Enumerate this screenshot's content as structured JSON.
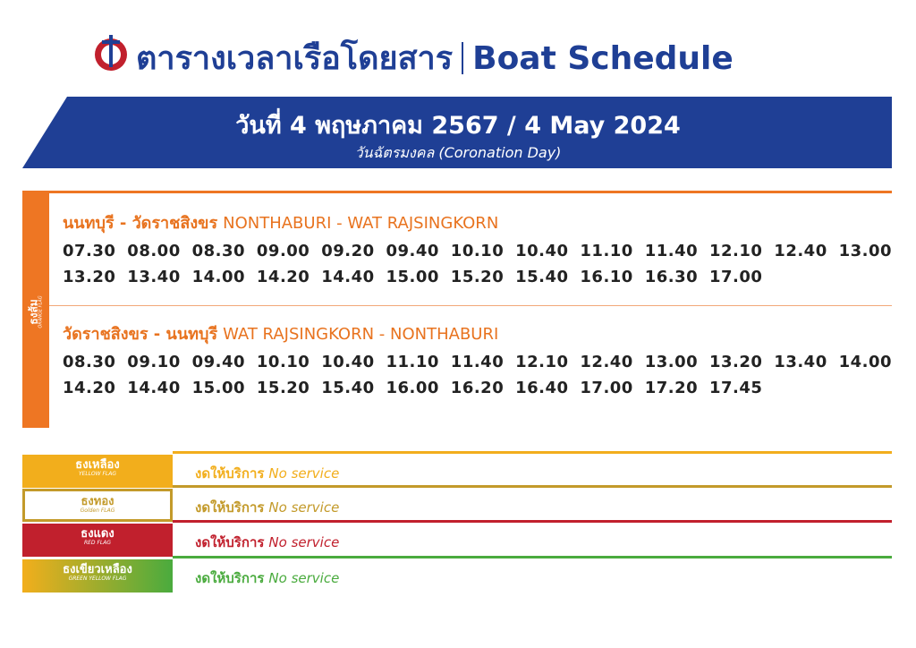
{
  "header": {
    "title_th": "ตารางเวลาเรือโดยสาร",
    "title_en": "Boat Schedule"
  },
  "banner": {
    "date": "วันที่ 4 พฤษภาคม 2567 / 4 May 2024",
    "subtitle": "วันฉัตรมงคล (Coronation Day)"
  },
  "orange": {
    "flag_th": "ธงส้ม",
    "flag_en": "ORANGE FLAG",
    "routes": [
      {
        "title_th": "นนทบุรี - วัดราชสิงขร",
        "title_en": "NONTHABURI - WAT RAJSINGKORN",
        "times": [
          "07.30",
          "08.00",
          "08.30",
          "09.00",
          "09.20",
          "09.40",
          "10.10",
          "10.40",
          "11.10",
          "11.40",
          "12.10",
          "12.40",
          "13.00",
          "13.20",
          "13.40",
          "14.00",
          "14.20",
          "14.40",
          "15.00",
          "15.20",
          "15.40",
          "16.10",
          "16.30",
          "17.00"
        ]
      },
      {
        "title_th": "วัดราชสิงขร - นนทบุรี",
        "title_en": "WAT RAJSINGKORN - NONTHABURI",
        "times": [
          "08.30",
          "09.10",
          "09.40",
          "10.10",
          "10.40",
          "11.10",
          "11.40",
          "12.10",
          "12.40",
          "13.00",
          "13.20",
          "13.40",
          "14.00",
          "14.20",
          "14.40",
          "15.00",
          "15.20",
          "15.40",
          "16.00",
          "16.20",
          "16.40",
          "17.00",
          "17.20",
          "17.45"
        ]
      }
    ]
  },
  "flags": [
    {
      "name_th": "ธงเหลือง",
      "name_en": "YELLOW FLAG",
      "status_th": "งดให้บริการ",
      "status_en": "No service",
      "color": "#f2ae1c"
    },
    {
      "name_th": "ธงทอง",
      "name_en": "Golden FLAG",
      "status_th": "งดให้บริการ",
      "status_en": "No service",
      "color": "#c39a2a"
    },
    {
      "name_th": "ธงแดง",
      "name_en": "RED FLAG",
      "status_th": "งดให้บริการ",
      "status_en": "No service",
      "color": "#c1202d"
    },
    {
      "name_th": "ธงเขียวเหลือง",
      "name_en": "GREEN YELLOW FLAG",
      "status_th": "งดให้บริการ",
      "status_en": "No service",
      "color": "#4aab3e"
    }
  ]
}
